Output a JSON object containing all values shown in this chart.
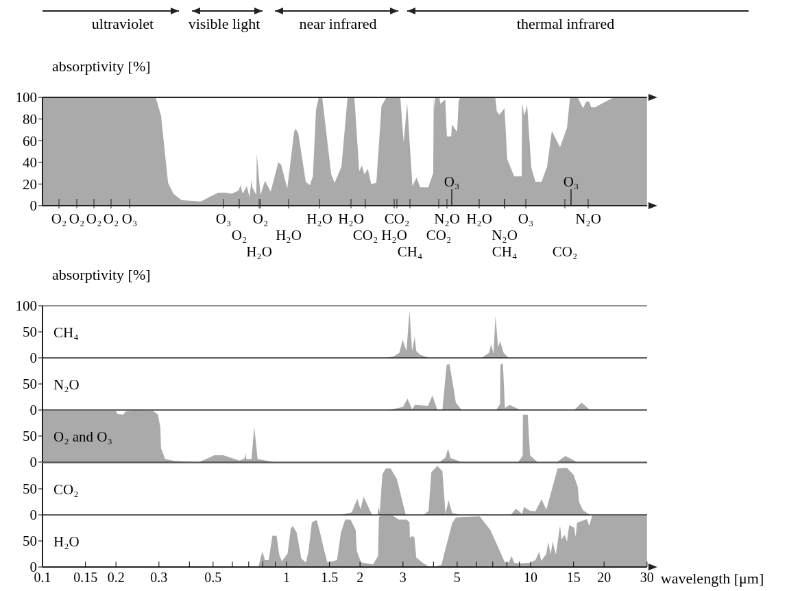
{
  "chart_data": [
    {
      "type": "area",
      "ylabel": "absorptivity [%]",
      "log": "x",
      "xlim": [
        0.1,
        30
      ],
      "ylim": [
        0,
        100
      ],
      "yticks": [
        0,
        20,
        40,
        60,
        80,
        100
      ],
      "tick_labels": "y",
      "annotations": [
        "ultraviolet",
        "visible light",
        "near infrared",
        "thermal infrared",
        "O₂",
        "O₂",
        "O₂",
        "O₂",
        "O₃",
        "O₃",
        "O₂",
        "O₂",
        "H₂O",
        "H₂O",
        "H₂O",
        "H₂O",
        "CO₂",
        "CO₂",
        "H₂O",
        "CH₄",
        "CO₂",
        "N₂O",
        "O₃",
        "H₂O",
        "N₂O",
        "CH₄",
        "O₃",
        "CO₂",
        "O₃",
        "N₂O"
      ],
      "series": [
        {
          "color": "#aaaaaa",
          "x": [
            0.1,
            0.291,
            0.306,
            0.327,
            0.344,
            0.372,
            0.446,
            0.524,
            0.562,
            0.596,
            0.636,
            0.648,
            0.661,
            0.687,
            0.705,
            0.719,
            0.724,
            0.752,
            0.755,
            0.782,
            0.816,
            0.861,
            0.925,
            0.95,
            1.007,
            1.074,
            1.088,
            1.117,
            1.199,
            1.246,
            1.282,
            1.321,
            1.355,
            1.4,
            1.524,
            1.573,
            1.679,
            1.778,
            1.897,
            1.985,
            2.037,
            2.084,
            2.153,
            2.223,
            2.333,
            2.449,
            2.564,
            2.926,
            3.02,
            3.12,
            3.28,
            3.41,
            3.53,
            3.81,
            3.99,
            4.01,
            4.04,
            4.06,
            4.23,
            4.27,
            4.47,
            4.54,
            4.73,
            4.76,
            5.0,
            5.07,
            5.14,
            7.17,
            7.27,
            7.45,
            7.82,
            8.02,
            8.57,
            9.19,
            9.23,
            9.43,
            9.68,
            10.07,
            10.47,
            11.09,
            11.68,
            12.22,
            13.2,
            14.1,
            14.5,
            15.6,
            16.4,
            16.9,
            17.4,
            17.7,
            18.4,
            21.9,
            30
          ],
          "values": [
            100,
            100,
            83,
            21,
            11,
            5,
            4,
            12,
            12,
            11,
            14,
            19,
            11,
            18,
            8,
            24,
            17,
            10,
            48,
            10,
            23,
            13,
            40,
            38,
            16,
            68,
            71,
            67,
            22,
            19,
            27,
            89,
            100,
            100,
            29,
            21,
            36,
            100,
            100,
            32,
            37,
            29,
            34,
            20,
            21,
            92,
            100,
            100,
            58,
            95,
            18,
            26,
            17,
            17,
            30,
            100,
            90,
            100,
            100,
            94,
            98,
            64,
            64,
            75,
            68,
            96,
            100,
            100,
            87,
            84,
            90,
            43,
            27,
            27,
            95,
            83,
            93,
            35,
            22,
            22,
            36,
            69,
            54,
            72,
            100,
            100,
            90,
            96,
            96,
            91,
            91,
            100,
            100
          ]
        }
      ]
    },
    {
      "type": "area",
      "ylabel": "absorptivity [%]",
      "log": "x",
      "xlim": [
        0.1,
        30
      ],
      "ylim": [
        0,
        100
      ],
      "yticks": [
        0,
        50,
        100
      ],
      "tick_labels": "y",
      "series": [
        {
          "name": "CH₄",
          "color": "#aaaaaa",
          "x": [
            2.55,
            2.75,
            2.9,
            2.99,
            3.1,
            3.19,
            3.27,
            3.35,
            3.4,
            3.53,
            3.85,
            6.3,
            6.76,
            6.89,
            7.05,
            7.18,
            7.36,
            7.5,
            7.75,
            8.11
          ],
          "values": [
            0,
            3,
            10,
            35,
            13,
            90,
            13,
            40,
            13,
            6,
            0,
            0,
            10,
            26,
            8,
            81,
            20,
            32,
            10,
            0
          ]
        }
      ]
    },
    {
      "type": "area",
      "log": "x",
      "xlim": [
        0.1,
        30
      ],
      "ylim": [
        0,
        100
      ],
      "yticks": [
        0,
        50
      ],
      "tick_labels": "y",
      "series": [
        {
          "name": "N₂O",
          "color": "#aaaaaa",
          "x": [
            2.62,
            3.0,
            3.13,
            3.27,
            3.36,
            3.8,
            3.96,
            4.15,
            4.35,
            4.53,
            4.65,
            4.77,
            4.94,
            5.22,
            7.23,
            7.5,
            7.52,
            7.7,
            7.85,
            8.21,
            9.07,
            15.1,
            16.2,
            17.5
          ],
          "values": [
            0,
            6,
            22,
            1,
            10,
            8,
            28,
            0,
            0,
            87,
            88,
            59,
            14,
            0,
            0,
            12,
            87,
            89,
            4,
            10,
            0,
            0,
            14,
            0
          ]
        }
      ]
    },
    {
      "type": "area",
      "log": "x",
      "xlim": [
        0.1,
        30
      ],
      "ylim": [
        0,
        100
      ],
      "yticks": [
        0,
        50
      ],
      "tick_labels": "y",
      "series": [
        {
          "name": "O₂ and O₃",
          "color": "#aaaaaa",
          "x": [
            0.1,
            0.199,
            0.203,
            0.214,
            0.22,
            0.281,
            0.297,
            0.304,
            0.306,
            0.318,
            0.349,
            0.438,
            0.507,
            0.55,
            0.641,
            0.673,
            0.678,
            0.684,
            0.719,
            0.737,
            0.761,
            0.893,
            4.24,
            4.48,
            4.59,
            4.7,
            5.22,
            8.89,
            9.28,
            9.3,
            9.73,
            9.95,
            10.67,
            12.8,
            13.9,
            15.5
          ],
          "values": [
            100,
            100,
            92,
            91,
            98,
            100,
            91,
            67,
            27,
            6,
            2,
            0,
            13,
            13,
            3,
            7,
            18,
            6,
            6,
            68,
            6,
            0,
            0,
            9,
            26,
            8,
            0,
            0,
            12,
            91,
            91,
            13,
            0,
            0,
            12,
            0
          ]
        }
      ]
    },
    {
      "type": "area",
      "log": "x",
      "xlim": [
        0.1,
        30
      ],
      "ylim": [
        0,
        100
      ],
      "yticks": [
        0,
        50
      ],
      "tick_labels": "y",
      "series": [
        {
          "name": "CO₂",
          "color": "#aaaaaa",
          "x": [
            1.67,
            1.85,
            1.95,
            2.01,
            2.07,
            2.24,
            2.36,
            2.38,
            2.41,
            2.47,
            2.55,
            2.67,
            2.83,
            3.08,
            3.66,
            3.82,
            3.92,
            4.15,
            4.35,
            4.48,
            4.61,
            4.77,
            5.11,
            8.29,
            8.71,
            9.23,
            9.39,
            9.95,
            10.46,
            11.1,
            11.6,
            12.9,
            14.1,
            15.0,
            15.6,
            15.8,
            16.4,
            17.5
          ],
          "values": [
            0,
            5,
            31,
            11,
            35,
            0,
            0,
            16,
            5,
            78,
            89,
            89,
            69,
            0,
            0,
            8,
            82,
            94,
            84,
            2,
            28,
            4,
            0,
            0,
            12,
            2,
            15,
            8,
            7,
            30,
            10,
            89,
            90,
            77,
            54,
            25,
            9,
            0
          ]
        }
      ]
    },
    {
      "type": "area",
      "xlabel": "wavelength [μm]",
      "log": "x",
      "xlim": [
        0.1,
        30
      ],
      "ylim": [
        0,
        100
      ],
      "yticks": [
        0,
        50
      ],
      "xticks": [
        0.1,
        0.15,
        0.2,
        0.3,
        {
          "value": 0.4,
          "label": null
        },
        0.5,
        {
          "value": 0.6,
          "label": null
        },
        {
          "value": 0.7,
          "label": null
        },
        {
          "value": 0.8,
          "label": null
        },
        {
          "value": 0.9,
          "label": null
        },
        1,
        1.5,
        2,
        3,
        {
          "value": 4,
          "label": null
        },
        5,
        {
          "value": 6,
          "label": null
        },
        {
          "value": 7,
          "label": null
        },
        {
          "value": 8,
          "label": null
        },
        {
          "value": 9,
          "label": null
        },
        10,
        15,
        20,
        30
      ],
      "series": [
        {
          "name": "H₂O",
          "color": "#aaaaaa",
          "x": [
            0.767,
            0.796,
            0.815,
            0.845,
            0.875,
            0.91,
            0.933,
            0.957,
            1.01,
            1.04,
            1.06,
            1.1,
            1.15,
            1.2,
            1.23,
            1.27,
            1.33,
            1.38,
            1.42,
            1.47,
            1.61,
            1.67,
            1.74,
            1.83,
            1.92,
            1.94,
            2.02,
            2.26,
            2.37,
            2.39,
            2.45,
            2.69,
            2.88,
            3.1,
            3.19,
            3.2,
            3.25,
            3.34,
            3.4,
            3.62,
            3.85,
            4.0,
            4.31,
            4.77,
            4.94,
            5.33,
            6.19,
            6.84,
            7.28,
            7.85,
            8.15,
            8.36,
            8.57,
            9.12,
            9.95,
            10.46,
            10.86,
            11.05,
            11.6,
            11.8,
            12.1,
            12.3,
            12.7,
            13.2,
            13.4,
            13.8,
            14.1,
            14.4,
            15.1,
            15.3,
            15.5,
            17.0,
            17.4,
            17.9,
            30
          ],
          "values": [
            0,
            30,
            13,
            13,
            60,
            60,
            24,
            11,
            26,
            73,
            79,
            66,
            16,
            9,
            30,
            86,
            90,
            61,
            36,
            9,
            13,
            66,
            91,
            91,
            71,
            31,
            9,
            5,
            21,
            96,
            100,
            100,
            91,
            91,
            86,
            56,
            59,
            58,
            18,
            8,
            0,
            0,
            4,
            84,
            95,
            96,
            97,
            71,
            43,
            9,
            9,
            21,
            8,
            7,
            8,
            13,
            29,
            12,
            25,
            48,
            24,
            49,
            24,
            80,
            53,
            62,
            49,
            81,
            75,
            58,
            85,
            92,
            79,
            100,
            100
          ]
        }
      ]
    }
  ]
}
